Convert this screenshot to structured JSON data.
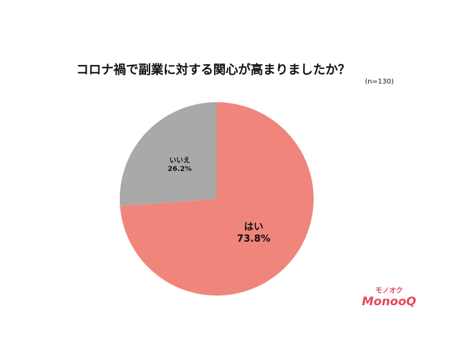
{
  "chart_data": {
    "type": "pie",
    "title": "コロナ禍で副業に対する関心が高まりましたか？",
    "subtitle": "(n=130)",
    "categories": [
      "はい",
      "いいえ"
    ],
    "values": [
      73.8,
      26.2
    ],
    "value_labels": [
      "73.8%",
      "26.2%"
    ],
    "colors": [
      "#f0867b",
      "#a9a9a9"
    ]
  },
  "logo": {
    "kana": "モノオク",
    "text": "MonooQ"
  }
}
